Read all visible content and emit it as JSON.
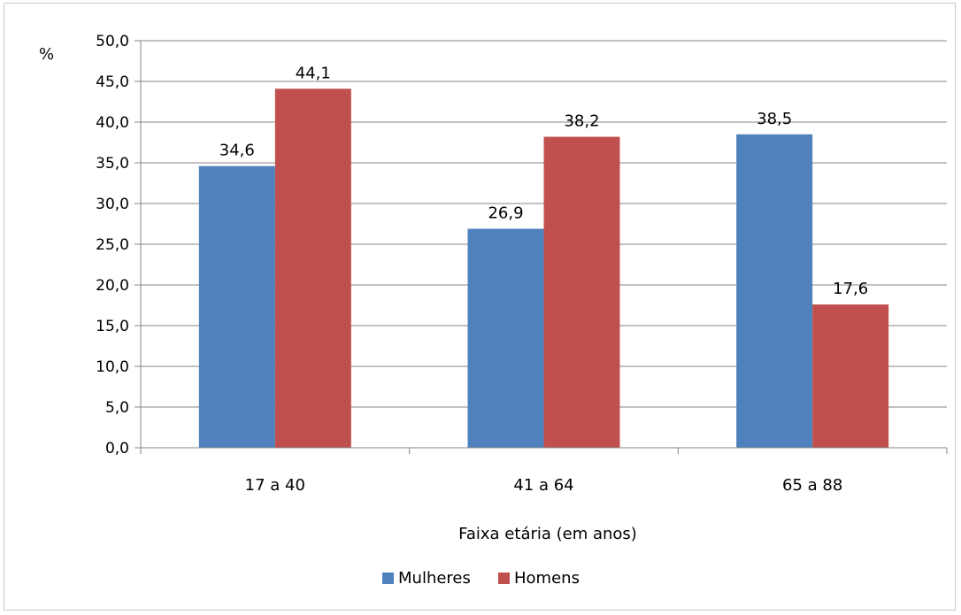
{
  "chart_data": {
    "type": "bar",
    "categories": [
      "17 a 40",
      "41 a 64",
      "65 a 88"
    ],
    "series": [
      {
        "name": "Mulheres",
        "values": [
          34.6,
          26.9,
          38.5
        ],
        "color": "#4F81BD"
      },
      {
        "name": "Homens",
        "values": [
          44.1,
          38.2,
          17.6
        ],
        "color": "#C0504D"
      }
    ],
    "data_labels": [
      [
        "34,6",
        "26,9",
        "38,5"
      ],
      [
        "44,1",
        "38,2",
        "17,6"
      ]
    ],
    "yticks": [
      "0,0",
      "5,0",
      "10,0",
      "15,0",
      "20,0",
      "25,0",
      "30,0",
      "35,0",
      "40,0",
      "45,0",
      "50,0"
    ],
    "ylim": [
      0,
      50
    ],
    "ystep": 5,
    "ylabel": "%",
    "xlabel": "Faixa etária (em anos)",
    "grid": true,
    "legend_position": "bottom",
    "colors": {
      "gridline": "#868686",
      "axis": "#868686"
    }
  }
}
